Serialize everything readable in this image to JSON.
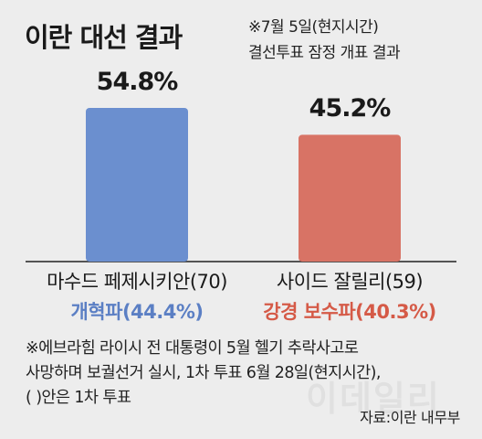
{
  "header": {
    "title": "이란 대선 결과",
    "subtitle_line1": "※7월 5일(현지시간)",
    "subtitle_line2": "결선투표 잠정 개표 결과"
  },
  "chart_data": {
    "type": "bar",
    "title": "이란 대선 결과",
    "categories": [
      "마수드 페제시키안(70)",
      "사이드 잘릴리(59)"
    ],
    "category_sublabels": [
      "개혁파(44.4%)",
      "강경 보수파(40.3%)"
    ],
    "values": [
      54.8,
      45.2
    ],
    "value_labels": [
      "54.8%",
      "45.2%"
    ],
    "colors": [
      "#6b8fcf",
      "#d87365"
    ],
    "ylim": [
      0,
      60
    ],
    "grid": false,
    "legend": "none"
  },
  "footnote": {
    "line1": "※에브라힘 라이시 전 대통령이 5월 헬기 추락사고로",
    "line2": "사망하며 보궐선거 실시, 1차 투표 6월 28일(현지시간),",
    "line3": "(   )안은 1차 투표"
  },
  "source": "자료:이란 내무부",
  "watermark": "이데일리",
  "colors": {
    "background": "#ededed",
    "reformist": "#5b7fc4",
    "conservative": "#d55a47"
  }
}
